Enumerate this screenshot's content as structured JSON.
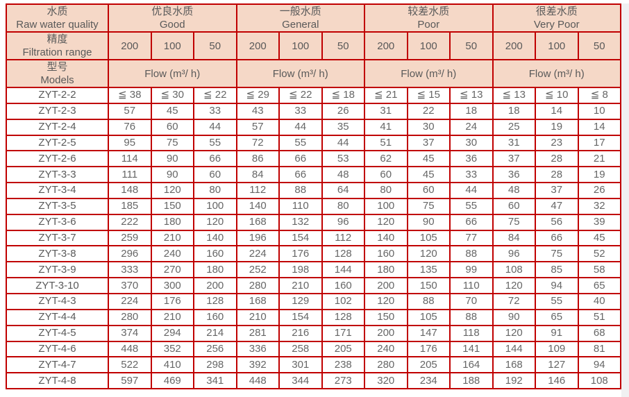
{
  "page": {
    "background": "#ffffff",
    "right_gutter_color": "#f0f1f2"
  },
  "table": {
    "border_color": "#c00000",
    "header_bg": "#f5d8c7",
    "header_text_color": "#595959",
    "body_text_color": "#666666",
    "row_headers": {
      "quality": {
        "zh": "水质",
        "en": "Raw water quality"
      },
      "filtration": {
        "zh": "精度",
        "en": "Filtration range"
      },
      "models": {
        "zh": "型号",
        "en": "Models"
      }
    },
    "quality_groups": [
      {
        "zh": "优良水质",
        "en": "Good"
      },
      {
        "zh": "一般水质",
        "en": "General"
      },
      {
        "zh": "较差水质",
        "en": "Poor"
      },
      {
        "zh": "很差水质",
        "en": "Very Poor"
      }
    ],
    "filtration_values": [
      "200",
      "100",
      "50"
    ],
    "flow_label": "Flow (m³/ h)",
    "rows": [
      {
        "model": "ZYT-2-2",
        "values": [
          "≦ 38",
          "≦ 30",
          "≦ 22",
          "≦ 29",
          "≦ 22",
          "≦ 18",
          "≦ 21",
          "≦ 15",
          "≦ 13",
          "≦ 13",
          "≦ 10",
          "≦ 8"
        ]
      },
      {
        "model": "ZYT-2-3",
        "values": [
          "57",
          "45",
          "33",
          "43",
          "33",
          "26",
          "31",
          "22",
          "18",
          "18",
          "14",
          "10"
        ]
      },
      {
        "model": "ZYT-2-4",
        "values": [
          "76",
          "60",
          "44",
          "57",
          "44",
          "35",
          "41",
          "30",
          "24",
          "25",
          "19",
          "14"
        ]
      },
      {
        "model": "ZYT-2-5",
        "values": [
          "95",
          "75",
          "55",
          "72",
          "55",
          "44",
          "51",
          "37",
          "30",
          "31",
          "23",
          "17"
        ]
      },
      {
        "model": "ZYT-2-6",
        "values": [
          "114",
          "90",
          "66",
          "86",
          "66",
          "53",
          "62",
          "45",
          "36",
          "37",
          "28",
          "21"
        ]
      },
      {
        "model": "ZYT-3-3",
        "values": [
          "111",
          "90",
          "60",
          "84",
          "66",
          "48",
          "60",
          "45",
          "33",
          "36",
          "28",
          "19"
        ]
      },
      {
        "model": "ZYT-3-4",
        "values": [
          "148",
          "120",
          "80",
          "112",
          "88",
          "64",
          "80",
          "60",
          "44",
          "48",
          "37",
          "26"
        ]
      },
      {
        "model": "ZYT-3-5",
        "values": [
          "185",
          "150",
          "100",
          "140",
          "110",
          "80",
          "100",
          "75",
          "55",
          "60",
          "47",
          "32"
        ]
      },
      {
        "model": "ZYT-3-6",
        "values": [
          "222",
          "180",
          "120",
          "168",
          "132",
          "96",
          "120",
          "90",
          "66",
          "75",
          "56",
          "39"
        ]
      },
      {
        "model": "ZYT-3-7",
        "values": [
          "259",
          "210",
          "140",
          "196",
          "154",
          "112",
          "140",
          "105",
          "77",
          "84",
          "66",
          "45"
        ]
      },
      {
        "model": "ZYT-3-8",
        "values": [
          "296",
          "240",
          "160",
          "224",
          "176",
          "128",
          "160",
          "120",
          "88",
          "96",
          "75",
          "52"
        ]
      },
      {
        "model": "ZYT-3-9",
        "values": [
          "333",
          "270",
          "180",
          "252",
          "198",
          "144",
          "180",
          "135",
          "99",
          "108",
          "85",
          "58"
        ]
      },
      {
        "model": "ZYT-3-10",
        "values": [
          "370",
          "300",
          "200",
          "280",
          "210",
          "160",
          "200",
          "150",
          "110",
          "120",
          "94",
          "65"
        ]
      },
      {
        "model": "ZYT-4-3",
        "values": [
          "224",
          "176",
          "128",
          "168",
          "129",
          "102",
          "120",
          "88",
          "70",
          "72",
          "55",
          "40"
        ]
      },
      {
        "model": "ZYT-4-4",
        "values": [
          "280",
          "210",
          "160",
          "210",
          "154",
          "128",
          "150",
          "105",
          "88",
          "90",
          "65",
          "51"
        ]
      },
      {
        "model": "ZYT-4-5",
        "values": [
          "374",
          "294",
          "214",
          "281",
          "216",
          "171",
          "200",
          "147",
          "118",
          "120",
          "91",
          "68"
        ]
      },
      {
        "model": "ZYT-4-6",
        "values": [
          "448",
          "352",
          "256",
          "336",
          "258",
          "205",
          "240",
          "176",
          "141",
          "144",
          "109",
          "81"
        ]
      },
      {
        "model": "ZYT-4-7",
        "values": [
          "522",
          "410",
          "298",
          "392",
          "301",
          "238",
          "280",
          "205",
          "164",
          "168",
          "127",
          "94"
        ]
      },
      {
        "model": "ZYT-4-8",
        "values": [
          "597",
          "469",
          "341",
          "448",
          "344",
          "273",
          "320",
          "234",
          "188",
          "192",
          "146",
          "108"
        ]
      }
    ]
  }
}
